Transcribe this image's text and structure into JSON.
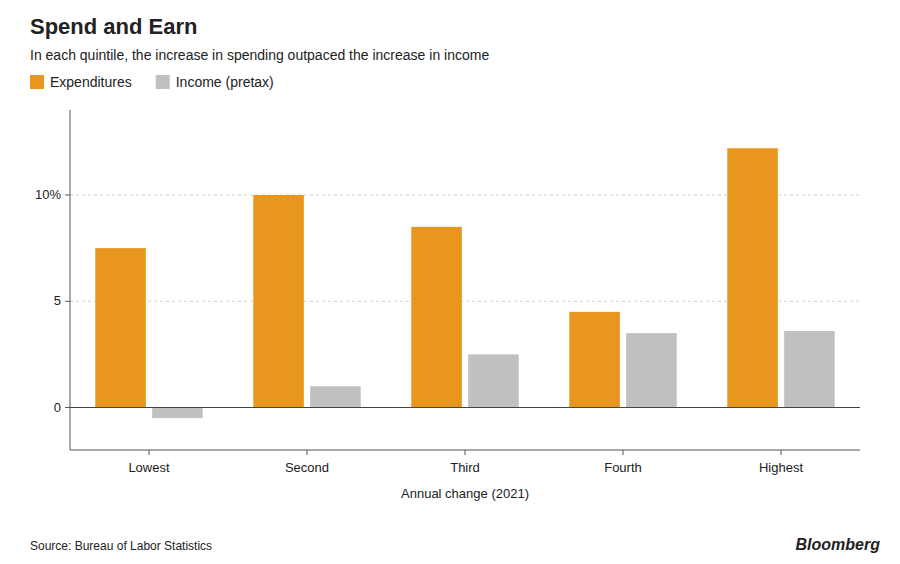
{
  "chart_data": {
    "type": "bar",
    "title": "Spend and Earn",
    "subtitle": "In each quintile, the increase in spending outpaced the increase in income",
    "categories": [
      "Lowest",
      "Second",
      "Third",
      "Fourth",
      "Highest"
    ],
    "series": [
      {
        "name": "Expenditures",
        "color": "#E8961E",
        "values": [
          7.5,
          10.0,
          8.5,
          4.5,
          12.2
        ]
      },
      {
        "name": "Income (pretax)",
        "color": "#C0C0C0",
        "values": [
          -0.5,
          1.0,
          2.5,
          3.5,
          3.6
        ]
      }
    ],
    "x_label": "Annual change (2021)",
    "ylim": [
      -2,
      14
    ],
    "yticks": [
      0,
      5,
      {
        "value": 10,
        "label": "10%"
      }
    ],
    "grid": true,
    "legend": "top-left",
    "annotations": [
      "Source: Bureau of Labor Statistics",
      "Bloomberg"
    ]
  }
}
